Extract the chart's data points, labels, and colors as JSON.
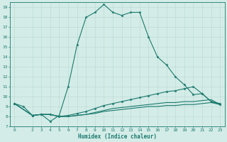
{
  "xlabel": "Humidex (Indice chaleur)",
  "ylabel": "",
  "bg_color": "#d4ece7",
  "line_color": "#1a7a6e",
  "grid_color": "#b8d8d2",
  "xlim": [
    -0.5,
    23.5
  ],
  "ylim": [
    7,
    19.5
  ],
  "xticks": [
    0,
    2,
    3,
    4,
    5,
    6,
    7,
    8,
    9,
    10,
    11,
    12,
    13,
    14,
    15,
    16,
    17,
    18,
    19,
    20,
    21,
    22,
    23
  ],
  "yticks": [
    7,
    8,
    9,
    10,
    11,
    12,
    13,
    14,
    15,
    16,
    17,
    18,
    19
  ],
  "series": {
    "main": {
      "x": [
        0,
        1,
        2,
        3,
        4,
        5,
        6,
        7,
        8,
        9,
        10,
        11,
        12,
        13,
        14,
        15,
        16,
        17,
        18,
        19,
        20,
        21,
        22,
        23
      ],
      "y": [
        9.3,
        9.0,
        8.1,
        8.2,
        7.5,
        8.1,
        11.0,
        15.2,
        18.0,
        18.5,
        19.3,
        18.5,
        18.2,
        18.5,
        18.5,
        16.0,
        14.0,
        13.2,
        12.0,
        11.2,
        10.2,
        10.3,
        9.5,
        9.3
      ],
      "marker": true
    },
    "line2": {
      "x": [
        0,
        2,
        3,
        4,
        5,
        6,
        7,
        8,
        9,
        10,
        11,
        12,
        13,
        14,
        15,
        16,
        17,
        18,
        19,
        20,
        21,
        22,
        23
      ],
      "y": [
        9.3,
        8.1,
        8.2,
        8.2,
        8.0,
        8.1,
        8.3,
        8.5,
        8.8,
        9.1,
        9.3,
        9.5,
        9.7,
        9.9,
        10.1,
        10.3,
        10.5,
        10.6,
        10.8,
        11.0,
        10.3,
        9.5,
        9.2
      ],
      "marker": true
    },
    "line3": {
      "x": [
        0,
        2,
        3,
        4,
        5,
        6,
        7,
        8,
        9,
        10,
        11,
        12,
        13,
        14,
        15,
        16,
        17,
        18,
        19,
        20,
        21,
        22,
        23
      ],
      "y": [
        9.3,
        8.1,
        8.2,
        8.2,
        8.0,
        8.0,
        8.1,
        8.2,
        8.4,
        8.6,
        8.8,
        8.9,
        9.0,
        9.1,
        9.2,
        9.3,
        9.4,
        9.4,
        9.5,
        9.5,
        9.6,
        9.7,
        9.2
      ],
      "marker": false
    },
    "line4": {
      "x": [
        0,
        2,
        3,
        4,
        5,
        6,
        7,
        8,
        9,
        10,
        11,
        12,
        13,
        14,
        15,
        16,
        17,
        18,
        19,
        20,
        21,
        22,
        23
      ],
      "y": [
        9.3,
        8.1,
        8.2,
        8.2,
        8.0,
        8.0,
        8.1,
        8.2,
        8.3,
        8.5,
        8.6,
        8.7,
        8.8,
        8.9,
        9.0,
        9.0,
        9.1,
        9.1,
        9.2,
        9.2,
        9.3,
        9.4,
        9.2
      ],
      "marker": false
    }
  }
}
